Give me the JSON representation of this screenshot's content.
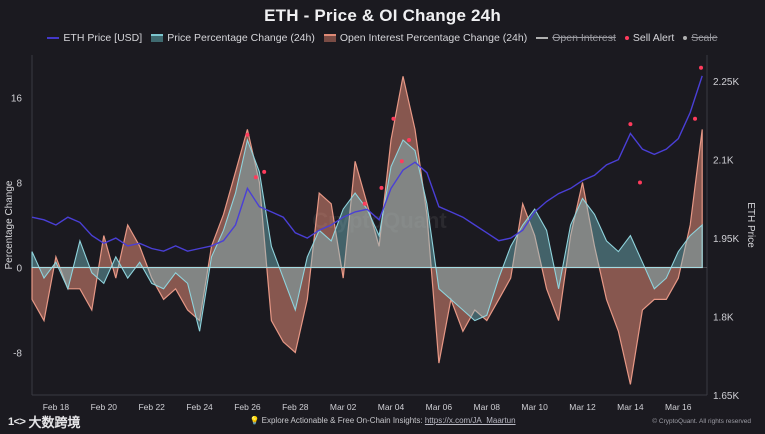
{
  "chart_data": {
    "type": "area",
    "title": "ETH - Price & OI Change 24h",
    "ylabel_left": "Percentage Change",
    "ylabel_right": "ETH Price",
    "ylim_left": [
      -12,
      20
    ],
    "ylim_right": [
      1650,
      2300
    ],
    "yticks_left": [
      "16",
      "8",
      "0",
      "-8"
    ],
    "yticks_left_values": [
      16,
      8,
      0,
      -8
    ],
    "yticks_right": [
      "2.25K",
      "2.1K",
      "1.95K",
      "1.8K",
      "1.65K"
    ],
    "yticks_right_values": [
      2250,
      2100,
      1950,
      1800,
      1650
    ],
    "x_ticks": [
      "Feb 18",
      "Feb 20",
      "Feb 22",
      "Feb 24",
      "Feb 26",
      "Feb 28",
      "Mar 02",
      "Mar 04",
      "Mar 06",
      "Mar 08",
      "Mar 10",
      "Mar 12",
      "Mar 14",
      "Mar 16"
    ],
    "x_tick_days": [
      1,
      3,
      5,
      7,
      9,
      11,
      13,
      15,
      17,
      19,
      21,
      23,
      25,
      27
    ],
    "x_range_days": [
      0,
      28.2
    ],
    "legend": [
      {
        "label": "ETH Price [USD]",
        "color": "#4338c9",
        "kind": "line",
        "enabled": true
      },
      {
        "label": "Price Percentage Change (24h)",
        "color": "#7cc6cf",
        "kind": "area",
        "enabled": true
      },
      {
        "label": "Open Interest Percentage Change (24h)",
        "color": "#e08a76",
        "kind": "area",
        "enabled": true
      },
      {
        "label": "Open Interest",
        "color": "#b0b0b0",
        "kind": "line",
        "enabled": false
      },
      {
        "label": "Sell Alert",
        "color": "#ff3b5c",
        "kind": "dot",
        "enabled": true
      },
      {
        "label": "Scale",
        "color": "#b0b0b0",
        "kind": "dot",
        "enabled": false
      }
    ],
    "watermark": "CryptoQuant",
    "series": [
      {
        "name": "ETH Price [USD]",
        "x": [
          0,
          0.5,
          1,
          1.5,
          2,
          2.5,
          3,
          3.5,
          4,
          4.5,
          5,
          5.5,
          6,
          6.5,
          7,
          7.5,
          8,
          8.5,
          9,
          9.5,
          10,
          10.5,
          11,
          11.5,
          12,
          12.5,
          13,
          13.5,
          14,
          14.5,
          15,
          15.5,
          16,
          16.5,
          17,
          17.5,
          18,
          18.5,
          19,
          19.5,
          20,
          20.5,
          21,
          21.5,
          22,
          22.5,
          23,
          23.5,
          24,
          24.5,
          25,
          25.5,
          26,
          26.5,
          27,
          27.5,
          28
        ],
        "values": [
          1990,
          1985,
          1975,
          1990,
          1980,
          1955,
          1940,
          1950,
          1935,
          1940,
          1930,
          1925,
          1935,
          1925,
          1930,
          1935,
          1945,
          1975,
          2045,
          2010,
          2000,
          1990,
          1960,
          1950,
          1965,
          1975,
          1990,
          2000,
          2005,
          1985,
          2045,
          2080,
          2095,
          2075,
          2010,
          2000,
          1990,
          1975,
          1960,
          1945,
          1950,
          1965,
          2000,
          2020,
          2035,
          2045,
          2060,
          2070,
          2090,
          2100,
          2150,
          2120,
          2110,
          2120,
          2140,
          2190,
          2260
        ]
      },
      {
        "name": "Price Percentage Change (24h)",
        "x": [
          0,
          0.5,
          1,
          1.5,
          2,
          2.5,
          3,
          3.5,
          4,
          4.5,
          5,
          5.5,
          6,
          6.5,
          7,
          7.5,
          8,
          8.5,
          9,
          9.5,
          10,
          10.5,
          11,
          11.5,
          12,
          12.5,
          13,
          13.5,
          14,
          14.5,
          15,
          15.5,
          16,
          16.5,
          17,
          17.5,
          18,
          18.5,
          19,
          19.5,
          20,
          20.5,
          21,
          21.5,
          22,
          22.5,
          23,
          23.5,
          24,
          24.5,
          25,
          25.5,
          26,
          26.5,
          27,
          27.5,
          28
        ],
        "values": [
          1.5,
          -1,
          0.5,
          -2,
          2.5,
          -0.5,
          -1.5,
          1,
          -1,
          0.5,
          -1.5,
          -2,
          -0.5,
          -1.5,
          -6,
          1,
          3.5,
          7,
          12,
          9,
          2,
          -1,
          -4,
          1,
          3.5,
          2.5,
          5.5,
          7,
          5.5,
          3,
          9.5,
          12,
          11,
          6,
          -2,
          -3,
          -4,
          -5,
          -4.5,
          -1,
          2,
          4,
          5.5,
          3.5,
          -2,
          4,
          6.5,
          5,
          2.5,
          1.5,
          3,
          0.5,
          -2,
          -1,
          1.5,
          3,
          4
        ]
      },
      {
        "name": "Open Interest Percentage Change (24h)",
        "x": [
          0,
          0.5,
          1,
          1.5,
          2,
          2.5,
          3,
          3.5,
          4,
          4.5,
          5,
          5.5,
          6,
          6.5,
          7,
          7.5,
          8,
          8.5,
          9,
          9.5,
          10,
          10.5,
          11,
          11.5,
          12,
          12.5,
          13,
          13.5,
          14,
          14.5,
          15,
          15.5,
          16,
          16.5,
          17,
          17.5,
          18,
          18.5,
          19,
          19.5,
          20,
          20.5,
          21,
          21.5,
          22,
          22.5,
          23,
          23.5,
          24,
          24.5,
          25,
          25.5,
          26,
          26.5,
          27,
          27.5,
          28
        ],
        "values": [
          -3,
          -5,
          1,
          -2,
          -2,
          -4,
          3,
          -1,
          4,
          2,
          -1,
          -3,
          -2,
          -4,
          -5,
          2,
          5,
          9,
          13,
          8,
          -5,
          -7,
          -8,
          -3,
          7,
          6,
          -1,
          10,
          6,
          2,
          12,
          18,
          13,
          5,
          -9,
          -3,
          -6,
          -4,
          -5,
          -3,
          -1,
          6,
          3,
          -2,
          -5,
          3,
          8,
          2,
          -3,
          -6,
          -11,
          -4,
          -3,
          -3,
          -1,
          4,
          13
        ]
      }
    ],
    "sell_alerts": [
      {
        "x": 9.0,
        "y": 12.5
      },
      {
        "x": 9.35,
        "y": 8.5
      },
      {
        "x": 9.7,
        "y": 9.0
      },
      {
        "x": 15.1,
        "y": 14.0
      },
      {
        "x": 15.45,
        "y": 10.0
      },
      {
        "x": 15.75,
        "y": 12.0
      },
      {
        "x": 13.9,
        "y": 6.0
      },
      {
        "x": 14.6,
        "y": 7.5
      },
      {
        "x": 25.0,
        "y": 13.5
      },
      {
        "x": 25.4,
        "y": 8.0
      },
      {
        "x": 27.7,
        "y": 14.0
      },
      {
        "x": 27.95,
        "y": 18.8
      }
    ]
  },
  "footer": {
    "cta": "Explore Actionable & Free On-Chain Insights:",
    "link": "https://x.com/JA_Maartun",
    "copyright": "© CryptoQuant. All rights reserved",
    "brand_mark": "1<>",
    "brand_name": "大数跨境"
  }
}
